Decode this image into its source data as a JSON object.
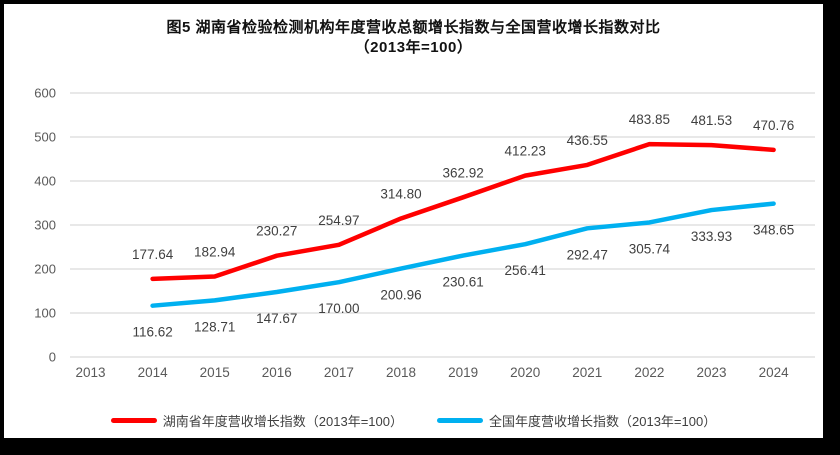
{
  "title": {
    "line1": "图5 湖南省检验检测机构年度营收总额增长指数与全国营收增长指数对比",
    "line2": "（2013年=100）"
  },
  "chart_data": {
    "type": "line",
    "categories": [
      2013,
      2014,
      2015,
      2016,
      2017,
      2018,
      2019,
      2020,
      2021,
      2022,
      2023,
      2024
    ],
    "series": [
      {
        "name": "湖南省年度营收增长指数（2013年=100）",
        "color": "#FF0000",
        "label_position": "above",
        "values": [
          null,
          177.64,
          182.94,
          230.27,
          254.97,
          314.8,
          362.92,
          412.23,
          436.55,
          483.85,
          481.53,
          470.76
        ]
      },
      {
        "name": "全国年度营收增长指数（2013年=100）",
        "color": "#00B0F0",
        "label_position": "below",
        "values": [
          null,
          116.62,
          128.71,
          147.67,
          170.0,
          200.96,
          230.61,
          256.41,
          292.47,
          305.74,
          333.93,
          348.65
        ]
      }
    ],
    "yticks": [
      0,
      100,
      200,
      300,
      400,
      500,
      600
    ],
    "ylim": [
      0,
      600
    ],
    "grid": true,
    "legend_position": "bottom",
    "colors": {
      "gridline": "#D9D9D9",
      "tick_label": "#595959",
      "data_label": "#404040"
    }
  }
}
